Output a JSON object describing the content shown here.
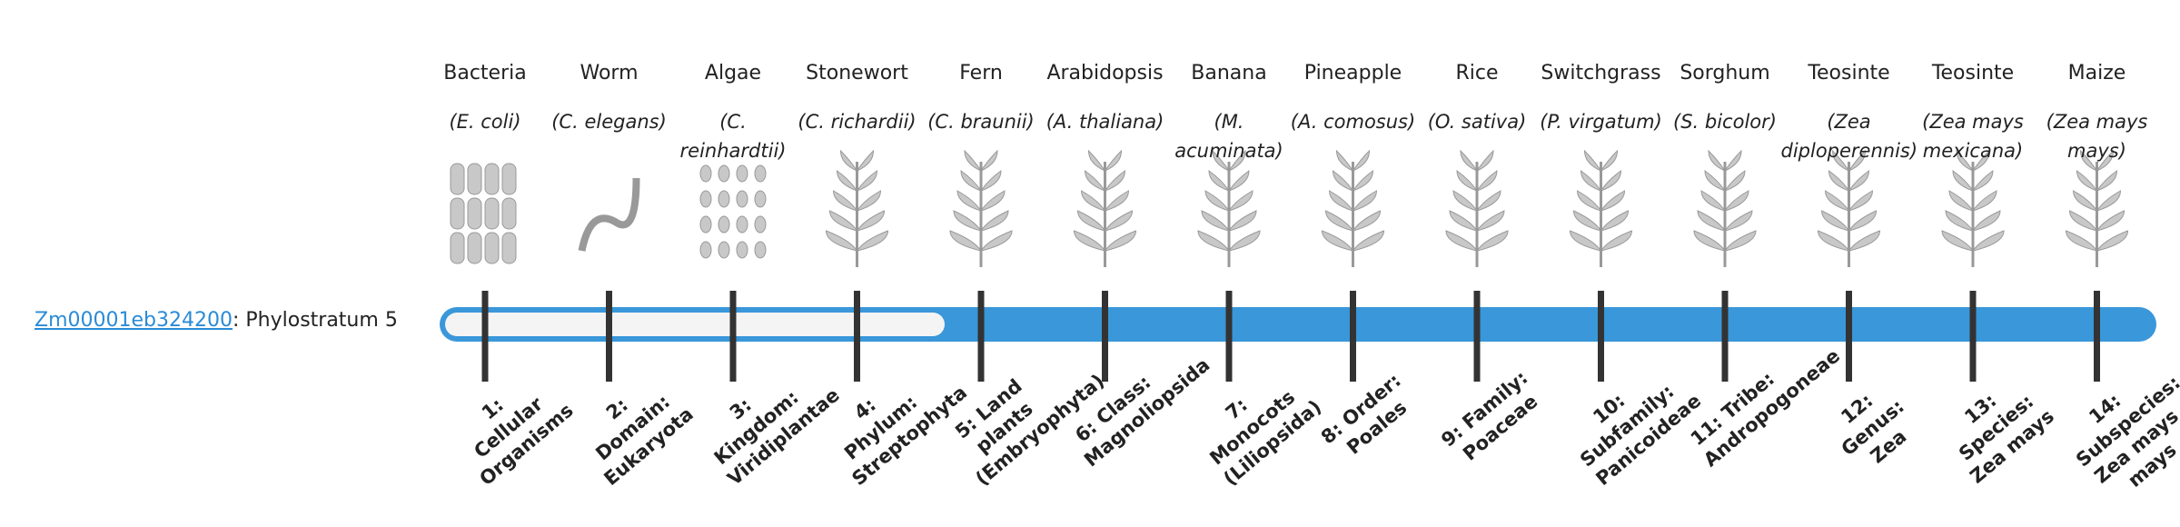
{
  "gene": {
    "id": "Zm00001eb324200",
    "label": ": Phylostratum",
    "phylostratum": 5
  },
  "organisms": [
    {
      "name": "Bacteria",
      "species": "(E. coli)",
      "stratum": "1: Cellular Organisms"
    },
    {
      "name": "Worm",
      "species": "(C. elegans)",
      "stratum": "2: Domain: Eukaryota"
    },
    {
      "name": "Algae",
      "species": "(C. reinhardtii)",
      "stratum": "3: Kingdom: Viridiplantae"
    },
    {
      "name": "Stonewort",
      "species": "(C. richardii)",
      "stratum": "4: Phylum: Streptophyta"
    },
    {
      "name": "Fern",
      "species": "(C. braunii)",
      "stratum": "5: Land plants (Embryophyta)"
    },
    {
      "name": "Arabidopsis",
      "species": "(A. thaliana)",
      "stratum": "6: Class: Magnoliopsida"
    },
    {
      "name": "Banana",
      "species": "(M. acuminata)",
      "stratum": "7: Monocots (Liliopsida)"
    },
    {
      "name": "Pineapple",
      "species": "(A. comosus)",
      "stratum": "8: Order: Poales"
    },
    {
      "name": "Rice",
      "species": "(O. sativa)",
      "stratum": "9: Family: Poaceae"
    },
    {
      "name": "Switchgrass",
      "species": "(P. virgatum)",
      "stratum": "10: Subfamily: Panicoideae"
    },
    {
      "name": "Sorghum",
      "species": "(S. bicolor)",
      "stratum": "11: Tribe: Andropogoneae"
    },
    {
      "name": "Teosinte",
      "species": "(Zea diploperennis)",
      "stratum": "12: Genus: Zea"
    },
    {
      "name": "Teosinte",
      "species": "(Zea mays mexicana)",
      "stratum": "13: Species: Zea mays"
    },
    {
      "name": "Maize",
      "species": "(Zea mays mays)",
      "stratum": "14: Subspecies: Zea mays mays"
    }
  ]
}
